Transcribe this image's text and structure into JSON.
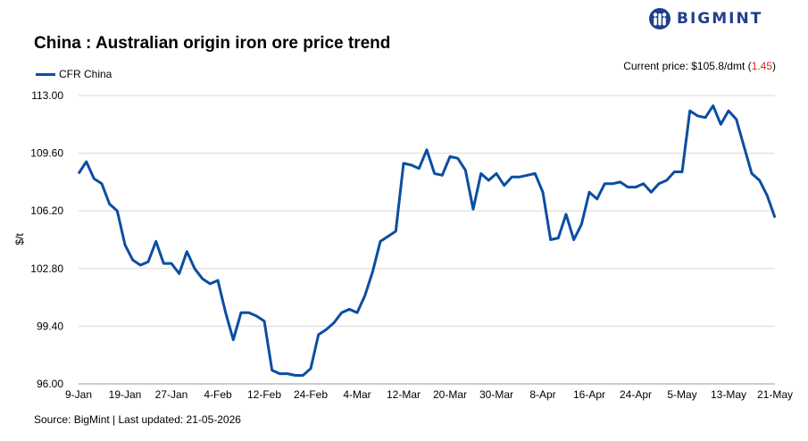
{
  "brand": {
    "name": "BIGMINT"
  },
  "header": {
    "title": "China : Australian origin iron ore price trend",
    "current_label": "Current price: $105.8/dmt (",
    "current_change": "1.45",
    "current_close": ")"
  },
  "footer": {
    "source": "Source: BigMint | Last updated: 21-05-2026"
  },
  "colors": {
    "series": "#0b4ea2",
    "change": "#e0201b",
    "brand": "#1f3f8c"
  },
  "chart_data": {
    "type": "line",
    "title": "China : Australian origin iron ore price trend",
    "ylabel": "$/t",
    "xlabel": "",
    "ylim": [
      96.0,
      113.0
    ],
    "yticks": [
      "113.00",
      "109.60",
      "106.20",
      "102.80",
      "99.40",
      "96.00"
    ],
    "yticks_values": [
      113.0,
      109.6,
      106.2,
      102.8,
      99.4,
      96.0
    ],
    "xtick_labels": [
      "9-Jan",
      "19-Jan",
      "27-Jan",
      "4-Feb",
      "12-Feb",
      "24-Feb",
      "4-Mar",
      "12-Mar",
      "20-Mar",
      "30-Mar",
      "8-Apr",
      "16-Apr",
      "24-Apr",
      "5-May",
      "13-May",
      "21-May"
    ],
    "grid": "horizontal",
    "legend": "top-left",
    "series": [
      {
        "name": "CFR China",
        "values": [
          108.4,
          109.1,
          108.1,
          107.8,
          106.6,
          106.2,
          104.2,
          103.3,
          103.0,
          103.2,
          104.4,
          103.1,
          103.1,
          102.5,
          103.8,
          102.8,
          102.2,
          101.9,
          102.1,
          100.2,
          98.6,
          100.2,
          100.2,
          100.0,
          99.7,
          96.8,
          96.6,
          96.6,
          96.5,
          96.5,
          96.9,
          98.9,
          99.2,
          99.6,
          100.2,
          100.4,
          100.2,
          101.2,
          102.6,
          104.4,
          104.7,
          105.0,
          109.0,
          108.9,
          108.7,
          109.8,
          108.4,
          108.3,
          109.4,
          109.3,
          108.6,
          106.3,
          108.4,
          108.0,
          108.4,
          107.7,
          108.2,
          108.2,
          108.3,
          108.4,
          107.3,
          104.5,
          104.6,
          106.0,
          104.5,
          105.4,
          107.3,
          106.9,
          107.8,
          107.8,
          107.9,
          107.6,
          107.6,
          107.8,
          107.3,
          107.8,
          108.0,
          108.5,
          108.5,
          112.1,
          111.8,
          111.7,
          112.4,
          111.3,
          112.1,
          111.6,
          110.0,
          108.4,
          108.0,
          107.1,
          105.8
        ]
      }
    ]
  }
}
